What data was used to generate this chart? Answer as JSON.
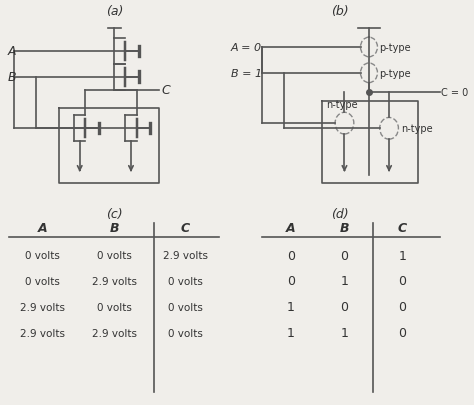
{
  "bg_color": "#f0eeea",
  "diagram_a_label": "(a)",
  "diagram_b_label": "(b)",
  "diagram_c_label": "(c)",
  "diagram_d_label": "(d)",
  "table_c_headers": [
    "A",
    "B",
    "C"
  ],
  "table_c_rows": [
    [
      "0 volts",
      "0 volts",
      "2.9 volts"
    ],
    [
      "0 volts",
      "2.9 volts",
      "0 volts"
    ],
    [
      "2.9 volts",
      "0 volts",
      "0 volts"
    ],
    [
      "2.9 volts",
      "2.9 volts",
      "0 volts"
    ]
  ],
  "table_d_headers": [
    "A",
    "B",
    "C"
  ],
  "table_d_rows": [
    [
      "0",
      "0",
      "1"
    ],
    [
      "0",
      "1",
      "0"
    ],
    [
      "1",
      "0",
      "0"
    ],
    [
      "1",
      "1",
      "0"
    ]
  ],
  "line_color": "#555555",
  "text_color": "#333333",
  "dashed_color": "#888888"
}
